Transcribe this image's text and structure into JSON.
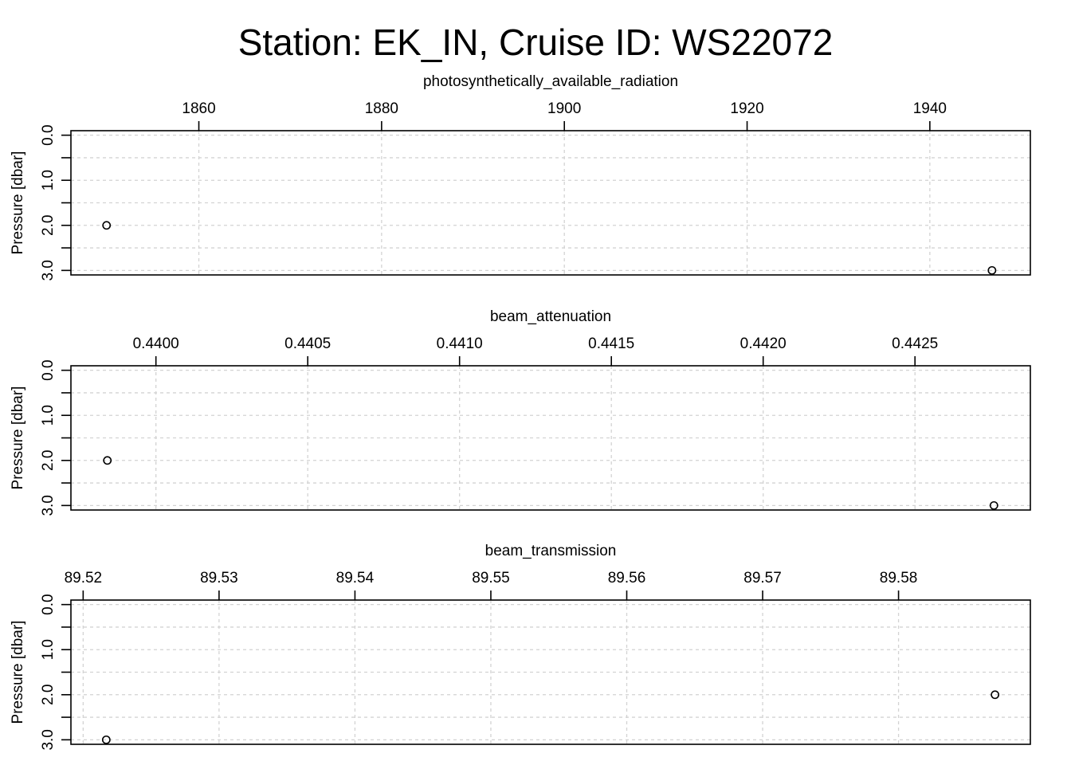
{
  "title": "Station: EK_IN, Cruise ID: WS22072",
  "chart_data": [
    {
      "type": "scatter",
      "title": "photosynthetically_available_radiation",
      "ylabel": "Pressure [dbar]",
      "xlim": [
        1846,
        1951
      ],
      "ylim": [
        3.1,
        -0.1
      ],
      "y_reversed": true,
      "x_ticks": [
        1860,
        1880,
        1900,
        1920,
        1940
      ],
      "x_tick_labels": [
        "1860",
        "1880",
        "1900",
        "1920",
        "1940"
      ],
      "y_ticks": [
        0,
        1,
        2,
        3
      ],
      "y_tick_labels": [
        "0.0",
        "1.0",
        "2.0",
        "3.0"
      ],
      "y_minor_ticks": [
        0.5,
        1.5,
        2.5
      ],
      "grid": true,
      "points": [
        {
          "x": 1849.9,
          "y": 2.0
        },
        {
          "x": 1946.8,
          "y": 3.0
        }
      ]
    },
    {
      "type": "scatter",
      "title": "beam_attenuation",
      "ylabel": "Pressure [dbar]",
      "xlim": [
        0.43972,
        0.44288
      ],
      "ylim": [
        3.1,
        -0.1
      ],
      "y_reversed": true,
      "x_ticks": [
        0.44,
        0.4405,
        0.441,
        0.4415,
        0.442,
        0.4425
      ],
      "x_tick_labels": [
        "0.4400",
        "0.4405",
        "0.4410",
        "0.4415",
        "0.4420",
        "0.4425"
      ],
      "y_ticks": [
        0,
        1,
        2,
        3
      ],
      "y_tick_labels": [
        "0.0",
        "1.0",
        "2.0",
        "3.0"
      ],
      "y_minor_ticks": [
        0.5,
        1.5,
        2.5
      ],
      "grid": true,
      "points": [
        {
          "x": 0.43984,
          "y": 2.0
        },
        {
          "x": 0.44276,
          "y": 3.0
        }
      ]
    },
    {
      "type": "scatter",
      "title": "beam_transmission",
      "ylabel": "Pressure [dbar]",
      "xlim": [
        89.5191,
        89.5897
      ],
      "ylim": [
        3.1,
        -0.1
      ],
      "y_reversed": true,
      "x_ticks": [
        89.52,
        89.53,
        89.54,
        89.55,
        89.56,
        89.57,
        89.58
      ],
      "x_tick_labels": [
        "89.52",
        "89.53",
        "89.54",
        "89.55",
        "89.56",
        "89.57",
        "89.58"
      ],
      "y_ticks": [
        0,
        1,
        2,
        3
      ],
      "y_tick_labels": [
        "0.0",
        "1.0",
        "2.0",
        "3.0"
      ],
      "y_minor_ticks": [
        0.5,
        1.5,
        2.5
      ],
      "grid": true,
      "points": [
        {
          "x": 89.5217,
          "y": 3.0
        },
        {
          "x": 89.5871,
          "y": 2.0
        }
      ]
    }
  ]
}
